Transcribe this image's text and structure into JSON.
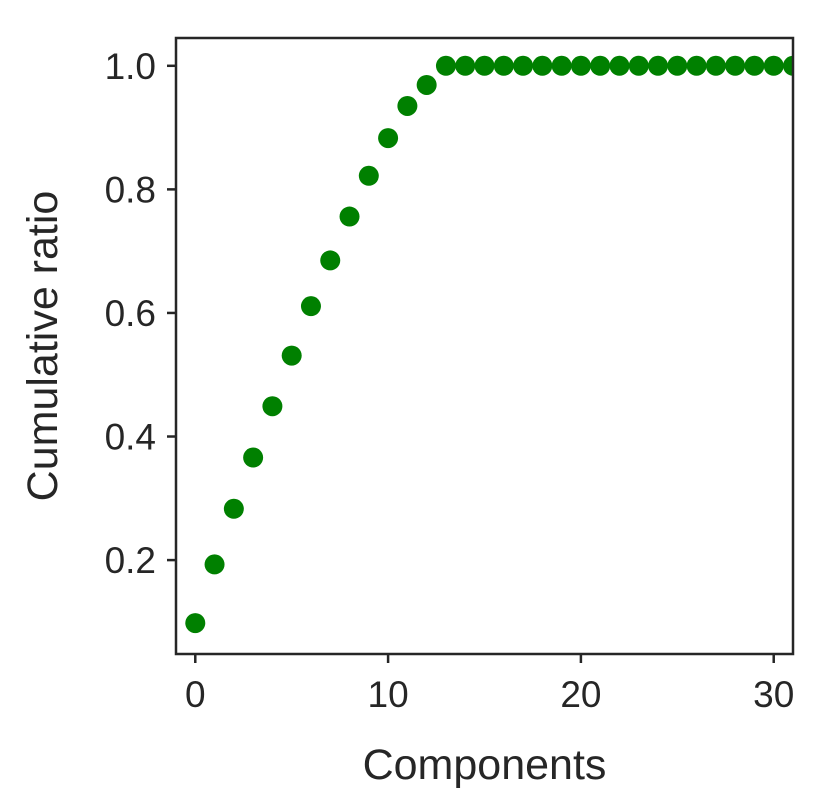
{
  "chart_data": {
    "type": "scatter",
    "title": "",
    "xlabel": "Components",
    "ylabel": "Cumulative ratio",
    "xlim": [
      -1,
      31
    ],
    "ylim": [
      0.048,
      1.045
    ],
    "xticks": [
      0,
      10,
      20,
      30
    ],
    "xtick_labels": [
      "0",
      "10",
      "20",
      "30"
    ],
    "yticks": [
      0.2,
      0.4,
      0.6,
      0.8,
      1.0
    ],
    "ytick_labels": [
      "0.2",
      "0.4",
      "0.6",
      "0.8",
      "1.0"
    ],
    "grid": false,
    "legend": "none",
    "marker_color": "#008000",
    "axis_color": "#262626",
    "series": [
      {
        "x": [
          0,
          1,
          2,
          3,
          4,
          5,
          6,
          7,
          8,
          9,
          10,
          11,
          12,
          13,
          14,
          15,
          16,
          17,
          18,
          19,
          20,
          21,
          22,
          23,
          24,
          25,
          26,
          27,
          28,
          29,
          30,
          31
        ],
        "y": [
          0.098,
          0.193,
          0.283,
          0.366,
          0.449,
          0.531,
          0.611,
          0.685,
          0.756,
          0.822,
          0.883,
          0.935,
          0.969,
          1.0,
          1.0,
          1.0,
          1.0,
          1.0,
          1.0,
          1.0,
          1.0,
          1.0,
          1.0,
          1.0,
          1.0,
          1.0,
          1.0,
          1.0,
          1.0,
          1.0,
          1.0,
          1.0
        ]
      }
    ]
  }
}
